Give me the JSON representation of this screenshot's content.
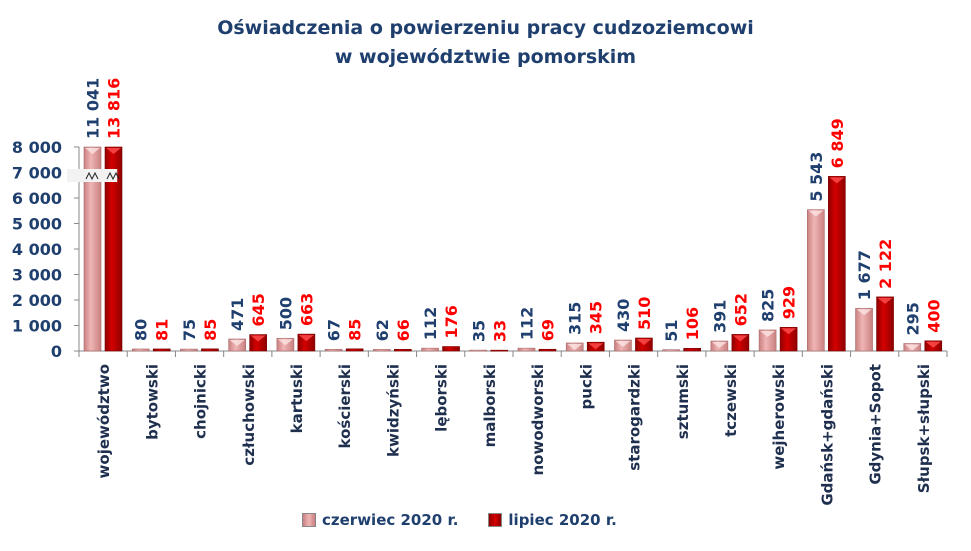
{
  "chart_data": {
    "type": "bar",
    "title_line1": "Oświadczenia o powierzeniu pracy cudzoziemcowi",
    "title_line2": "w województwie pomorskim",
    "xlabel": "",
    "ylabel": "",
    "ylim": [
      0,
      8000
    ],
    "yticks": [
      "0",
      "1 000",
      "2 000",
      "3 000",
      "4 000",
      "5 000",
      "6 000",
      "7 000",
      "8 000"
    ],
    "ytick_values": [
      0,
      1000,
      2000,
      3000,
      4000,
      5000,
      6000,
      7000,
      8000
    ],
    "axis_break": true,
    "categories": [
      "województwo",
      "bytowski",
      "chojnicki",
      "człuchowski",
      "kartuski",
      "kościerski",
      "kwidzyński",
      "lęborski",
      "malborski",
      "nowodworski",
      "pucki",
      "starogardzki",
      "sztumski",
      "tczewski",
      "wejherowski",
      "Gdańsk+gdański",
      "Gdynia+Sopot",
      "Słupsk+słupski"
    ],
    "series": [
      {
        "name": "czerwiec 2020 r.",
        "color": "#e29a9a",
        "label_color": "#1f3f6e",
        "values": [
          11041,
          80,
          75,
          471,
          500,
          67,
          62,
          112,
          35,
          112,
          315,
          430,
          51,
          391,
          825,
          5543,
          1677,
          295
        ],
        "labels": [
          "11 041",
          "80",
          "75",
          "471",
          "500",
          "67",
          "62",
          "112",
          "35",
          "112",
          "315",
          "430",
          "51",
          "391",
          "825",
          "5 543",
          "1 677",
          "295"
        ]
      },
      {
        "name": "lipiec 2020 r.",
        "color": "#c00000",
        "label_color": "#ff0000",
        "values": [
          13816,
          81,
          85,
          645,
          663,
          85,
          66,
          176,
          33,
          69,
          345,
          510,
          106,
          652,
          929,
          6849,
          2122,
          400
        ],
        "labels": [
          "13 816",
          "81",
          "85",
          "645",
          "663",
          "85",
          "66",
          "176",
          "33",
          "69",
          "345",
          "510",
          "106",
          "652",
          "929",
          "6 849",
          "2 122",
          "400"
        ]
      }
    ],
    "legend_position": "bottom"
  }
}
